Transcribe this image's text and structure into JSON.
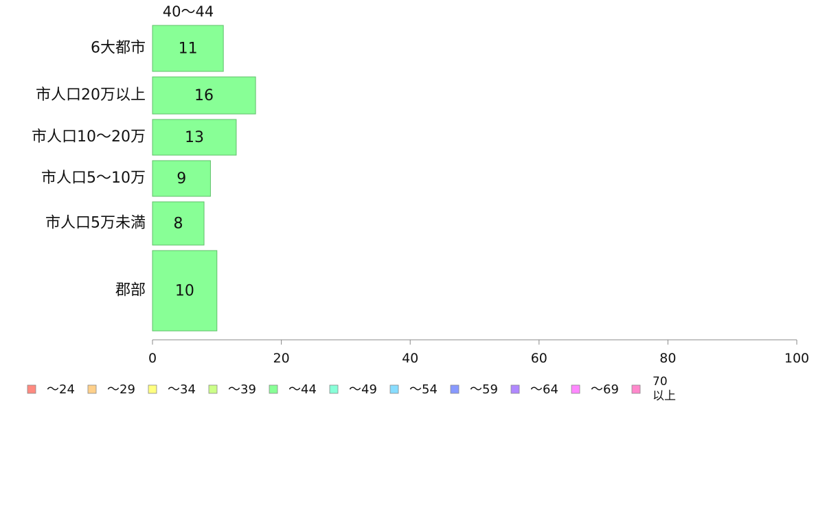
{
  "chart_data": {
    "type": "bar",
    "orientation": "horizontal",
    "stacked": true,
    "column_header": "40〜44",
    "categories": [
      "6大都市",
      "市人口20万以上",
      "市人口10〜20万",
      "市人口5〜10万",
      "市人口5万未満",
      "郡部"
    ],
    "series": [
      {
        "name": "〜44",
        "values": [
          11,
          16,
          13,
          9,
          8,
          10
        ]
      }
    ],
    "xlim": [
      0,
      100
    ],
    "xticks": [
      0,
      20,
      40,
      60,
      80,
      100
    ],
    "grid": false,
    "legend_position": "bottom",
    "legend": [
      {
        "label": "〜24",
        "color": "#ff8a80"
      },
      {
        "label": "〜29",
        "color": "#ffd08a"
      },
      {
        "label": "〜34",
        "color": "#ffff80"
      },
      {
        "label": "〜39",
        "color": "#ccff88"
      },
      {
        "label": "〜44",
        "color": "#88ff96"
      },
      {
        "label": "〜49",
        "color": "#88ffd8"
      },
      {
        "label": "〜54",
        "color": "#88ddff"
      },
      {
        "label": "〜59",
        "color": "#8899ff"
      },
      {
        "label": "〜64",
        "color": "#b088ff"
      },
      {
        "label": "〜69",
        "color": "#ff88ff"
      },
      {
        "label": "70\n以上",
        "color": "#ff88cc"
      }
    ],
    "bar_color": "#88ff96",
    "bar_stroke": "#5fbf6a"
  }
}
